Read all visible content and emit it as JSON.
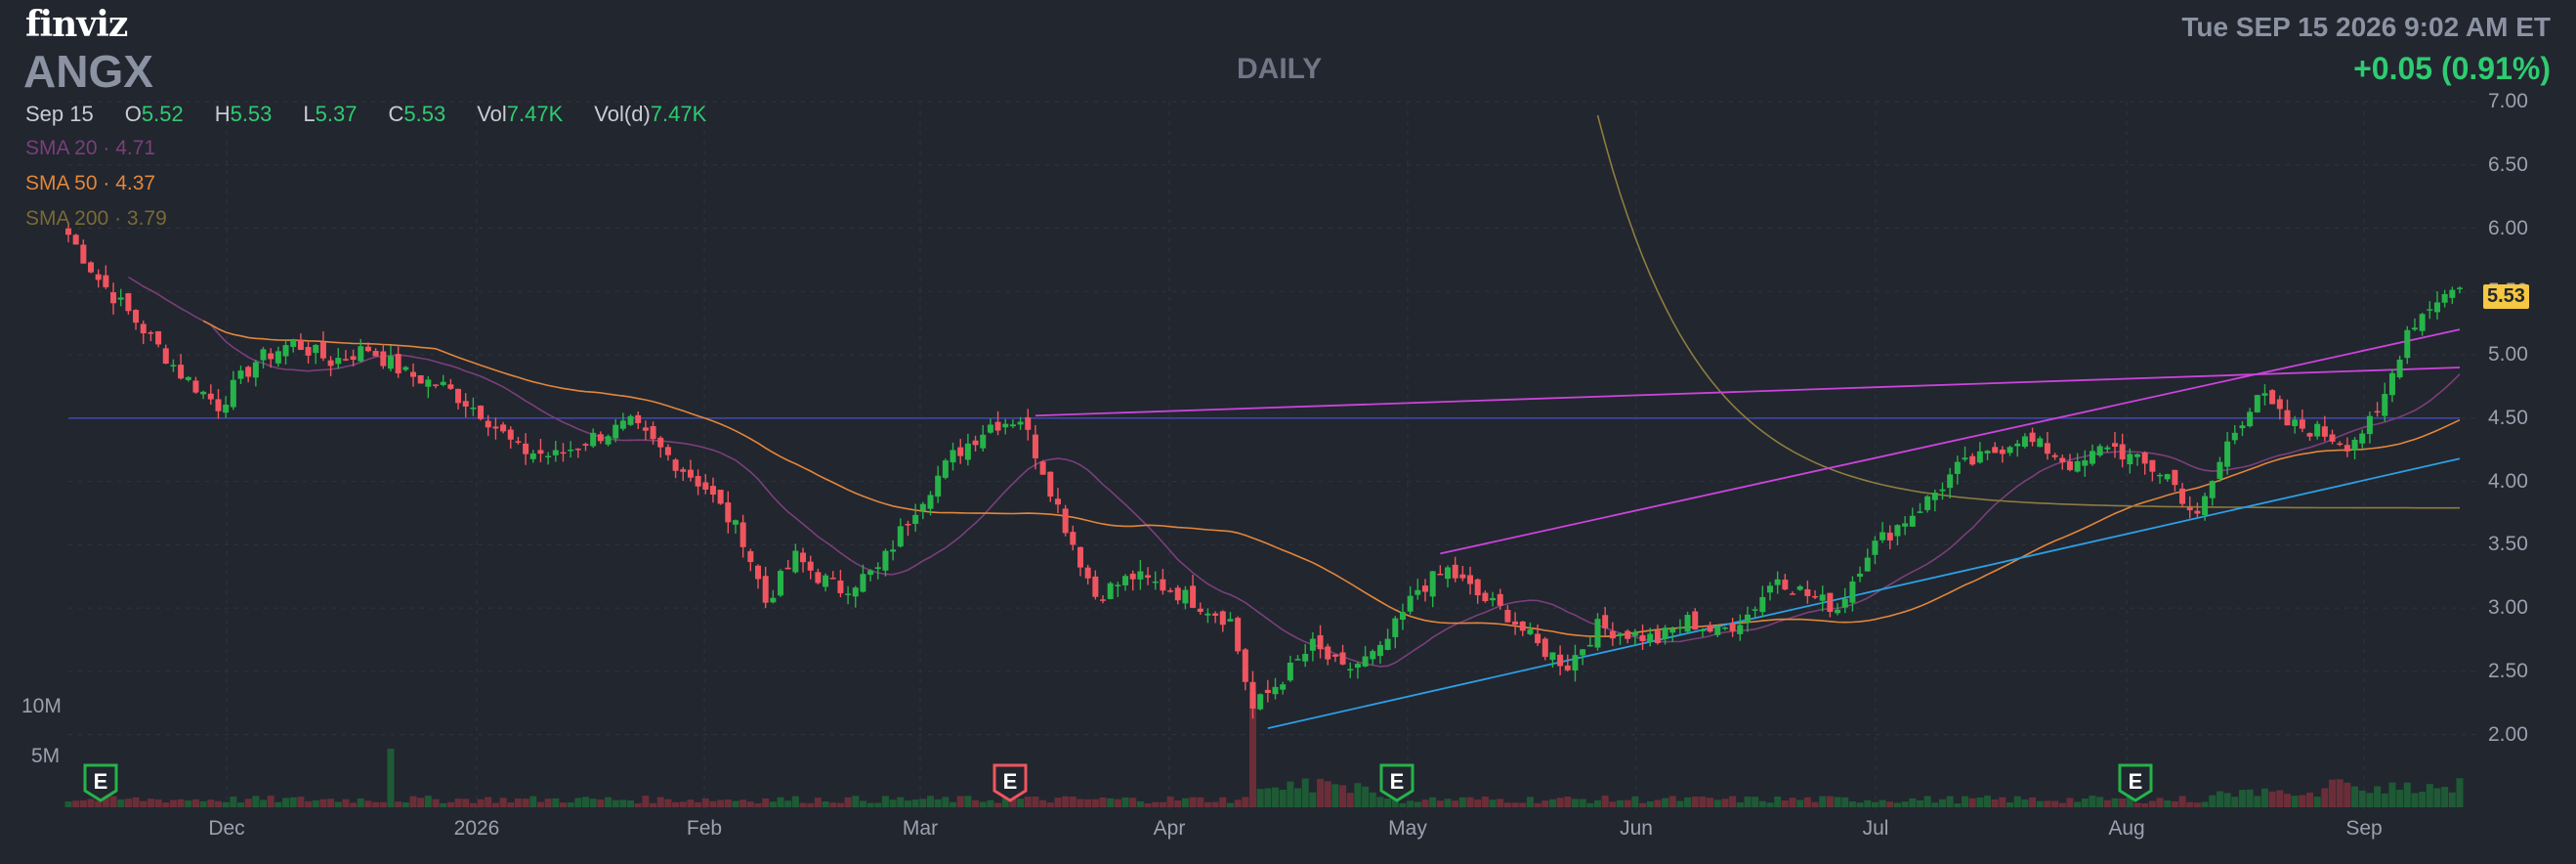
{
  "header": {
    "logo": "finviz",
    "ticker": "ANGX",
    "timeframe": "DAILY",
    "datetime": "Tue SEP 15 2026 9:02 AM ET",
    "change": "+0.05 (0.91%)"
  },
  "ohlc": {
    "date": "Sep 15",
    "o_label": "O",
    "o": "5.52",
    "h_label": "H",
    "h": "5.53",
    "l_label": "L",
    "l": "5.37",
    "c_label": "C",
    "c": "5.53",
    "vol_label": "Vol",
    "vol": "7.47K",
    "vold_label": "Vol(d)",
    "vold": "7.47K"
  },
  "indicators": [
    {
      "label": "SMA 20",
      "value": "4.71",
      "color": "#7a3f7a"
    },
    {
      "label": "SMA 50",
      "value": "4.37",
      "color": "#e2863a"
    },
    {
      "label": "SMA 200",
      "value": "3.79",
      "color": "#7a6a35"
    }
  ],
  "colors": {
    "up": "#26b34a",
    "down": "#f0555f",
    "grid": "#2f3440",
    "sma20": "#7a3f7a",
    "sma50": "#e2863a",
    "sma200": "#8d7d3f",
    "trend_magenta": "#cc44dd",
    "trend_blue": "#2ba0e6",
    "horizontal": "#3c46a8",
    "last_price_bg": "#f5c742"
  },
  "chart_data": {
    "type": "candlestick",
    "title": "ANGX DAILY",
    "y_axis_ticks": [
      "7.00",
      "6.50",
      "6.00",
      "5.50",
      "5.00",
      "4.50",
      "4.00",
      "3.50",
      "3.00",
      "2.50",
      "2.00"
    ],
    "ylim": [
      1.75,
      7.0
    ],
    "x_axis_labels": [
      "Dec",
      "2026",
      "Feb",
      "Mar",
      "Apr",
      "May",
      "Jun",
      "Jul",
      "Aug",
      "Sep"
    ],
    "volume_ticks": [
      "10M",
      "5M"
    ],
    "last_price": "5.53",
    "earnings_markers": [
      "E",
      "E",
      "E",
      "E"
    ],
    "close_path": [
      [
        0,
        5.95
      ],
      [
        4,
        5.6
      ],
      [
        10,
        5.2
      ],
      [
        15,
        4.85
      ],
      [
        20,
        4.6
      ],
      [
        25,
        4.95
      ],
      [
        30,
        5.1
      ],
      [
        35,
        4.95
      ],
      [
        40,
        5.05
      ],
      [
        45,
        4.85
      ],
      [
        50,
        4.75
      ],
      [
        55,
        4.55
      ],
      [
        60,
        4.25
      ],
      [
        65,
        4.2
      ],
      [
        70,
        4.35
      ],
      [
        75,
        4.45
      ],
      [
        80,
        4.2
      ],
      [
        85,
        3.95
      ],
      [
        90,
        3.55
      ],
      [
        93,
        3.05
      ],
      [
        97,
        3.4
      ],
      [
        100,
        3.25
      ],
      [
        103,
        3.15
      ],
      [
        108,
        3.3
      ],
      [
        113,
        3.8
      ],
      [
        118,
        4.2
      ],
      [
        123,
        4.45
      ],
      [
        127,
        4.5
      ],
      [
        130,
        4.1
      ],
      [
        133,
        3.65
      ],
      [
        137,
        3.1
      ],
      [
        142,
        3.25
      ],
      [
        147,
        3.15
      ],
      [
        152,
        3.0
      ],
      [
        155,
        2.9
      ],
      [
        158,
        2.2
      ],
      [
        162,
        2.45
      ],
      [
        166,
        2.7
      ],
      [
        170,
        2.5
      ],
      [
        175,
        2.65
      ],
      [
        180,
        3.15
      ],
      [
        184,
        3.3
      ],
      [
        188,
        3.1
      ],
      [
        192,
        2.95
      ],
      [
        196,
        2.7
      ],
      [
        200,
        2.55
      ],
      [
        204,
        2.85
      ],
      [
        208,
        2.8
      ],
      [
        212,
        2.75
      ],
      [
        216,
        2.9
      ],
      [
        220,
        2.8
      ],
      [
        224,
        2.95
      ],
      [
        228,
        3.25
      ],
      [
        232,
        3.1
      ],
      [
        236,
        3.0
      ],
      [
        240,
        3.45
      ],
      [
        244,
        3.65
      ],
      [
        248,
        3.85
      ],
      [
        252,
        4.1
      ],
      [
        256,
        4.2
      ],
      [
        260,
        4.35
      ],
      [
        264,
        4.25
      ],
      [
        268,
        4.1
      ],
      [
        272,
        4.3
      ],
      [
        276,
        4.15
      ],
      [
        280,
        4.05
      ],
      [
        284,
        3.7
      ],
      [
        288,
        4.3
      ],
      [
        292,
        4.7
      ],
      [
        296,
        4.45
      ],
      [
        300,
        4.4
      ],
      [
        304,
        4.3
      ],
      [
        308,
        4.5
      ],
      [
        312,
        5.2
      ],
      [
        316,
        5.45
      ],
      [
        319,
        5.53
      ]
    ],
    "series": [
      {
        "name": "SMA 20",
        "value": 4.71
      },
      {
        "name": "SMA 50",
        "value": 4.37
      },
      {
        "name": "SMA 200",
        "value": 3.79
      }
    ],
    "grid": true
  }
}
